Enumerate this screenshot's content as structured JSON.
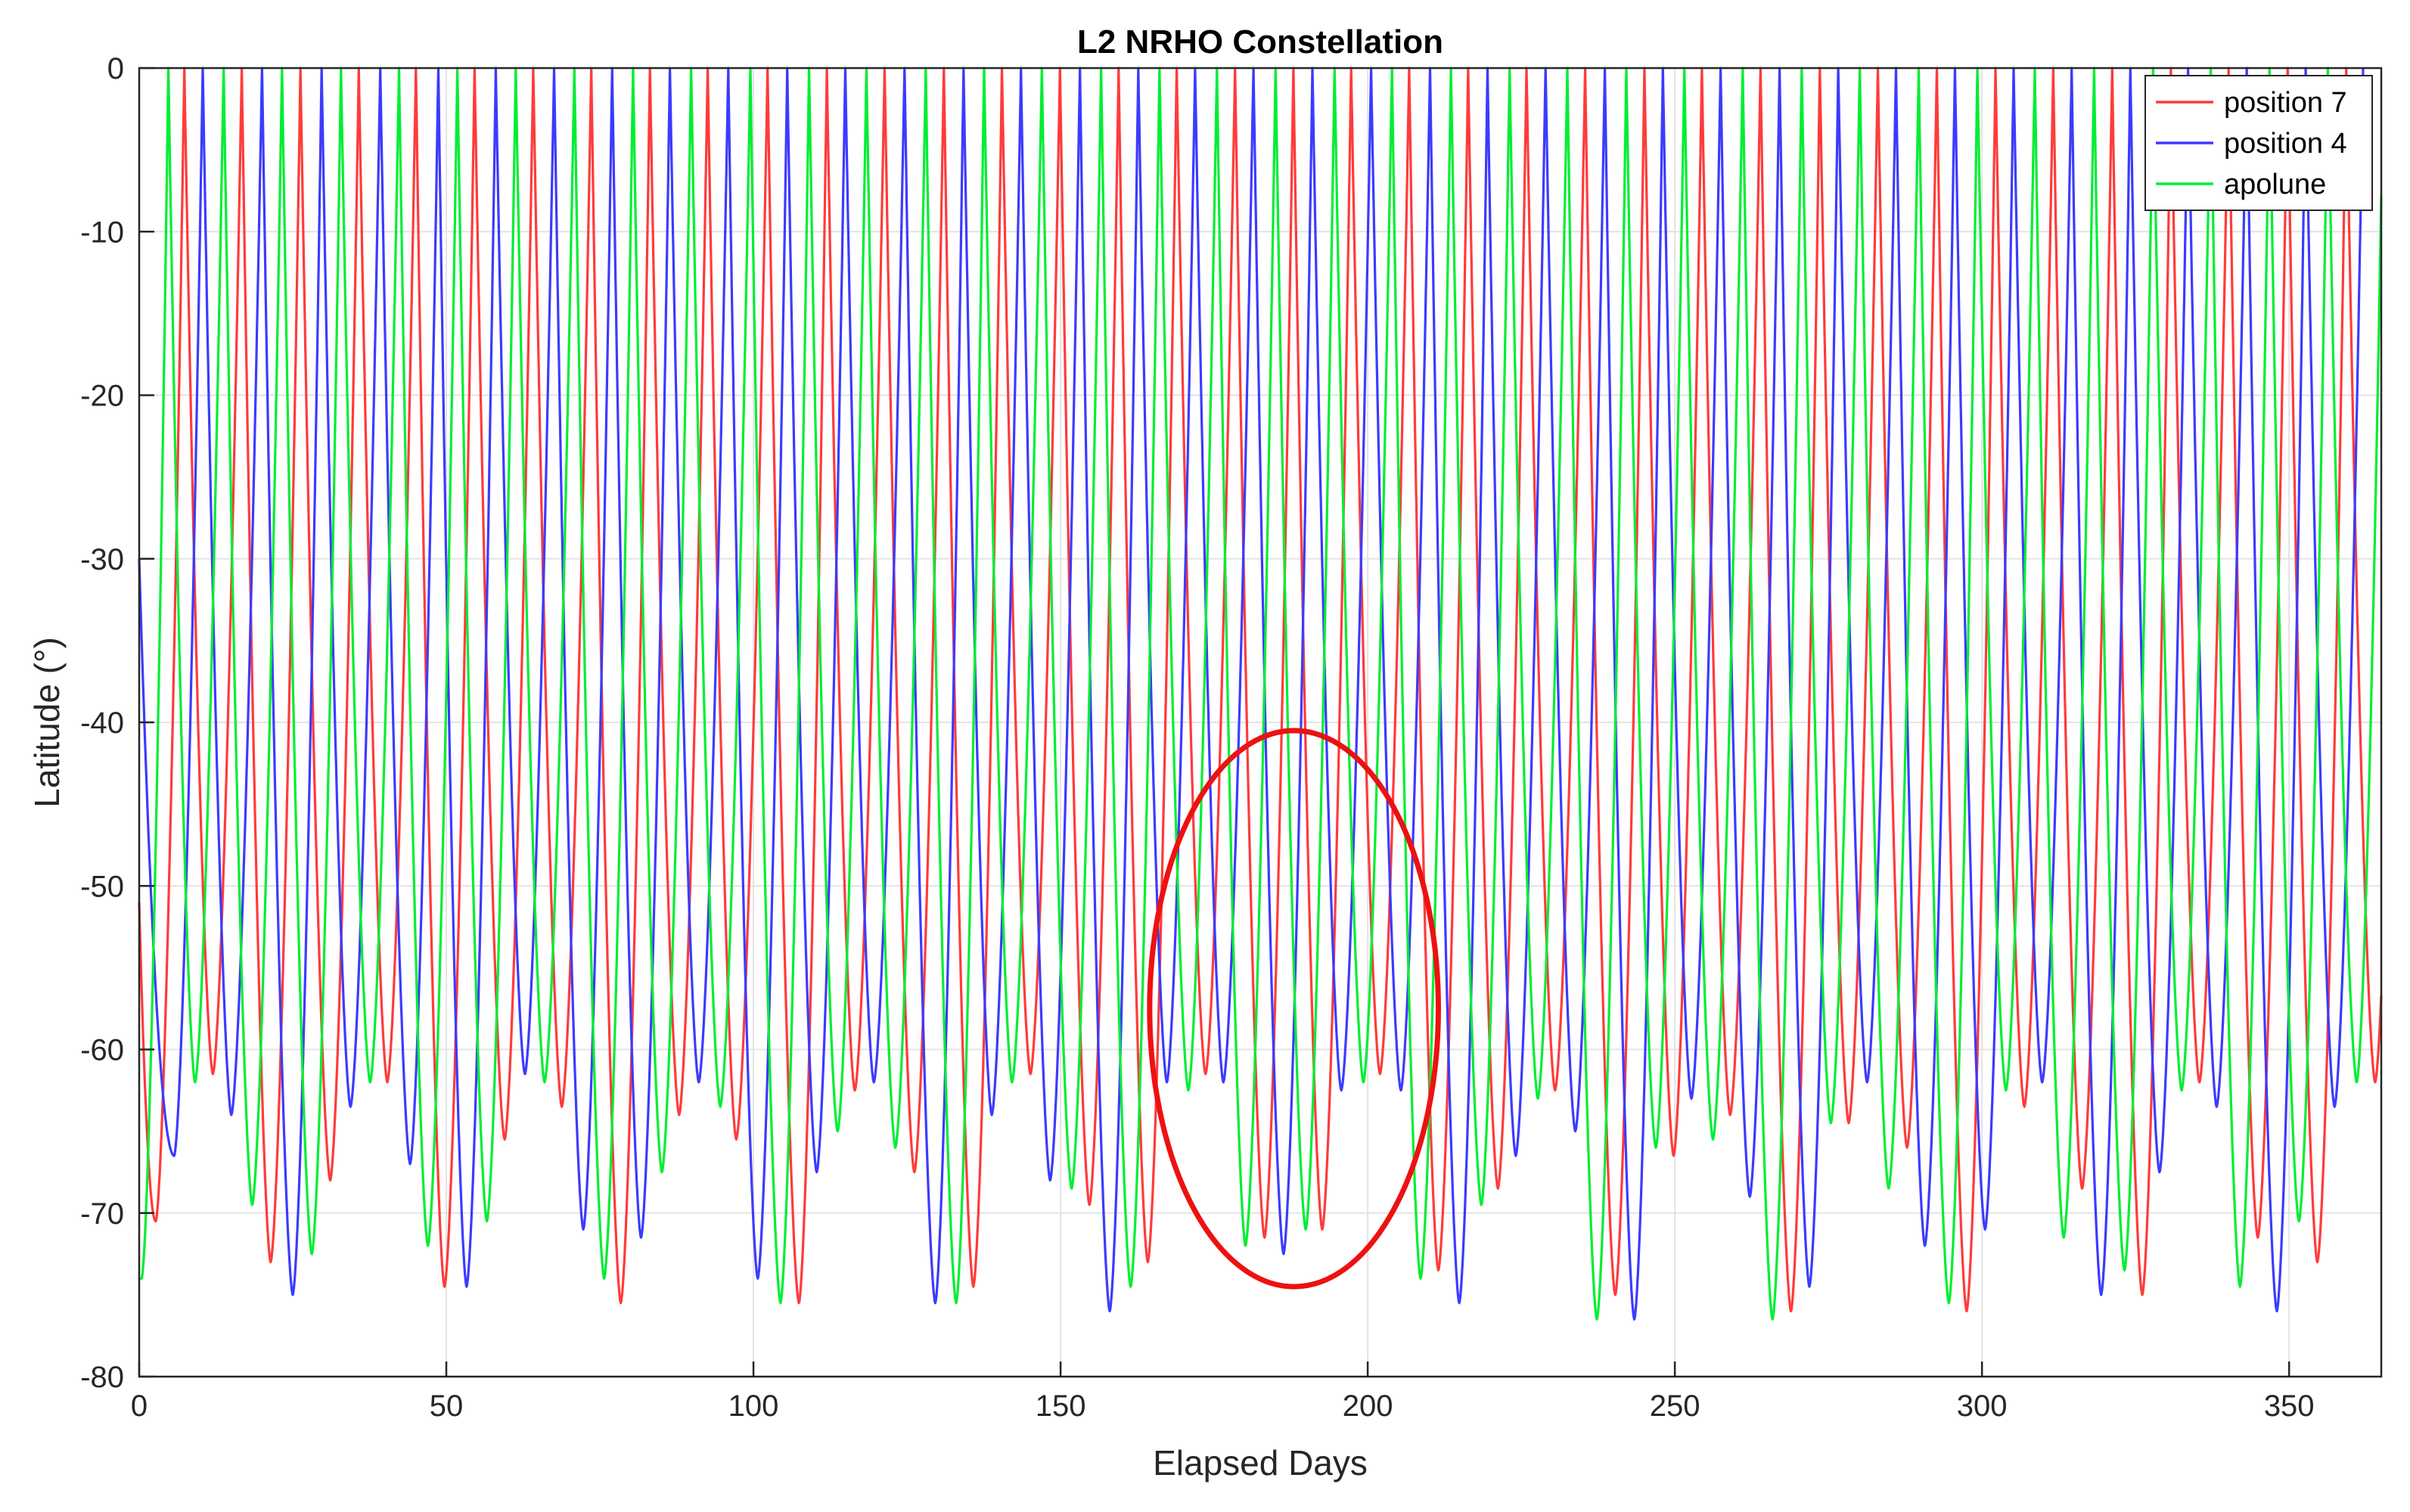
{
  "chart_data": {
    "type": "line",
    "title": "L2 NRHO Constellation",
    "xlabel": "Elapsed Days",
    "ylabel": "Latitude (°)",
    "xlim": [
      0,
      365
    ],
    "ylim": [
      -80,
      0
    ],
    "xticks": [
      0,
      50,
      100,
      150,
      200,
      250,
      300,
      350
    ],
    "yticks": [
      0,
      -10,
      -20,
      -30,
      -40,
      -50,
      -60,
      -70,
      -80
    ],
    "grid": true,
    "legend_position": "top-right",
    "series": [
      {
        "name": "position 7",
        "color": "#ff3b3b",
        "start_value": -51,
        "dips": [
          {
            "x": 2.7,
            "y": -70.5
          },
          {
            "x": 12.0,
            "y": -61.5
          },
          {
            "x": 21.4,
            "y": -73
          },
          {
            "x": 31.1,
            "y": -68
          },
          {
            "x": 40.4,
            "y": -62
          },
          {
            "x": 49.7,
            "y": -74.5
          },
          {
            "x": 59.5,
            "y": -65.5
          },
          {
            "x": 68.8,
            "y": -63.5
          },
          {
            "x": 78.4,
            "y": -75.5
          },
          {
            "x": 87.9,
            "y": -64
          },
          {
            "x": 97.2,
            "y": -65.5
          },
          {
            "x": 107.4,
            "y": -75.5
          },
          {
            "x": 116.5,
            "y": -62.5
          },
          {
            "x": 126.2,
            "y": -67.5
          },
          {
            "x": 135.8,
            "y": -74.5
          },
          {
            "x": 145.1,
            "y": -61.5
          },
          {
            "x": 154.7,
            "y": -69.5
          },
          {
            "x": 164.2,
            "y": -73
          },
          {
            "x": 173.6,
            "y": -61.5
          },
          {
            "x": 183.2,
            "y": -71.5
          },
          {
            "x": 192.6,
            "y": -71
          },
          {
            "x": 202.0,
            "y": -61.5
          },
          {
            "x": 211.5,
            "y": -73.5
          },
          {
            "x": 221.2,
            "y": -68.5
          },
          {
            "x": 230.5,
            "y": -62.5
          },
          {
            "x": 240.3,
            "y": -75
          },
          {
            "x": 249.8,
            "y": -66.5
          },
          {
            "x": 259.0,
            "y": -64
          },
          {
            "x": 268.9,
            "y": -76
          },
          {
            "x": 278.3,
            "y": -64.5
          },
          {
            "x": 287.8,
            "y": -66
          },
          {
            "x": 297.5,
            "y": -76
          },
          {
            "x": 306.9,
            "y": -63.5
          },
          {
            "x": 316.3,
            "y": -68.5
          },
          {
            "x": 326.1,
            "y": -75
          },
          {
            "x": 335.4,
            "y": -62
          },
          {
            "x": 344.9,
            "y": -71.5
          },
          {
            "x": 354.6,
            "y": -73
          },
          {
            "x": 364.0,
            "y": -62
          }
        ]
      },
      {
        "name": "position 4",
        "color": "#3b3bff",
        "start_value": -30,
        "dips": [
          {
            "x": 5.7,
            "y": -66.5
          },
          {
            "x": 15.0,
            "y": -64
          },
          {
            "x": 25.0,
            "y": -75
          },
          {
            "x": 34.4,
            "y": -63.5
          },
          {
            "x": 44.1,
            "y": -67
          },
          {
            "x": 53.3,
            "y": -74.5
          },
          {
            "x": 62.8,
            "y": -61.5
          },
          {
            "x": 72.3,
            "y": -71
          },
          {
            "x": 81.7,
            "y": -71.5
          },
          {
            "x": 91.1,
            "y": -62
          },
          {
            "x": 100.7,
            "y": -74
          },
          {
            "x": 110.3,
            "y": -67.5
          },
          {
            "x": 119.6,
            "y": -62
          },
          {
            "x": 129.6,
            "y": -75.5
          },
          {
            "x": 138.8,
            "y": -64
          },
          {
            "x": 148.3,
            "y": -68
          },
          {
            "x": 158.0,
            "y": -76
          },
          {
            "x": 167.3,
            "y": -62
          },
          {
            "x": 176.5,
            "y": -62
          },
          {
            "x": 186.3,
            "y": -72.5
          },
          {
            "x": 195.7,
            "y": -62.5
          },
          {
            "x": 205.4,
            "y": -62.5
          },
          {
            "x": 214.9,
            "y": -75.5
          },
          {
            "x": 224.1,
            "y": -66.5
          },
          {
            "x": 233.8,
            "y": -65
          },
          {
            "x": 243.4,
            "y": -76.5
          },
          {
            "x": 252.7,
            "y": -63
          },
          {
            "x": 262.2,
            "y": -69
          },
          {
            "x": 271.9,
            "y": -74.5
          },
          {
            "x": 281.3,
            "y": -62
          },
          {
            "x": 290.7,
            "y": -72
          },
          {
            "x": 300.5,
            "y": -71
          },
          {
            "x": 309.8,
            "y": -62
          },
          {
            "x": 319.4,
            "y": -75
          },
          {
            "x": 328.9,
            "y": -67.5
          },
          {
            "x": 338.2,
            "y": -63.5
          },
          {
            "x": 348.0,
            "y": -76
          },
          {
            "x": 357.4,
            "y": -63.5
          }
        ]
      },
      {
        "name": "apolune",
        "color": "#00ee33",
        "start_value": -74,
        "dips": [
          {
            "x": 0.4,
            "y": -74
          },
          {
            "x": 9.1,
            "y": -62
          },
          {
            "x": 18.4,
            "y": -69.5
          },
          {
            "x": 28.1,
            "y": -72.5
          },
          {
            "x": 37.6,
            "y": -62
          },
          {
            "x": 47.0,
            "y": -72
          },
          {
            "x": 56.6,
            "y": -70.5
          },
          {
            "x": 66.0,
            "y": -62
          },
          {
            "x": 75.7,
            "y": -74
          },
          {
            "x": 85.1,
            "y": -67.5
          },
          {
            "x": 94.6,
            "y": -63.5
          },
          {
            "x": 104.4,
            "y": -75.5
          },
          {
            "x": 113.7,
            "y": -65
          },
          {
            "x": 123.1,
            "y": -66
          },
          {
            "x": 133.0,
            "y": -75.5
          },
          {
            "x": 142.1,
            "y": -62
          },
          {
            "x": 151.8,
            "y": -68.5
          },
          {
            "x": 161.4,
            "y": -74.5
          },
          {
            "x": 170.8,
            "y": -62.5
          },
          {
            "x": 180.1,
            "y": -72
          },
          {
            "x": 189.9,
            "y": -71
          },
          {
            "x": 199.3,
            "y": -62
          },
          {
            "x": 208.6,
            "y": -74
          },
          {
            "x": 218.5,
            "y": -69.5
          },
          {
            "x": 227.7,
            "y": -63
          },
          {
            "x": 237.3,
            "y": -76.5
          },
          {
            "x": 246.9,
            "y": -66
          },
          {
            "x": 256.2,
            "y": -65.5
          },
          {
            "x": 265.9,
            "y": -76.5
          },
          {
            "x": 275.4,
            "y": -64.5
          },
          {
            "x": 284.8,
            "y": -68.5
          },
          {
            "x": 294.6,
            "y": -75.5
          },
          {
            "x": 303.9,
            "y": -62.5
          },
          {
            "x": 313.3,
            "y": -71.5
          },
          {
            "x": 323.2,
            "y": -73.5
          },
          {
            "x": 332.5,
            "y": -62.5
          },
          {
            "x": 342.0,
            "y": -74.5
          },
          {
            "x": 351.6,
            "y": -70.5
          },
          {
            "x": 361.0,
            "y": -62
          }
        ]
      }
    ],
    "annotations": [
      {
        "type": "ellipse",
        "color": "#ee1111",
        "cx": 188,
        "cy": -57.5,
        "rx": 23.5,
        "ry": 17
      }
    ]
  }
}
